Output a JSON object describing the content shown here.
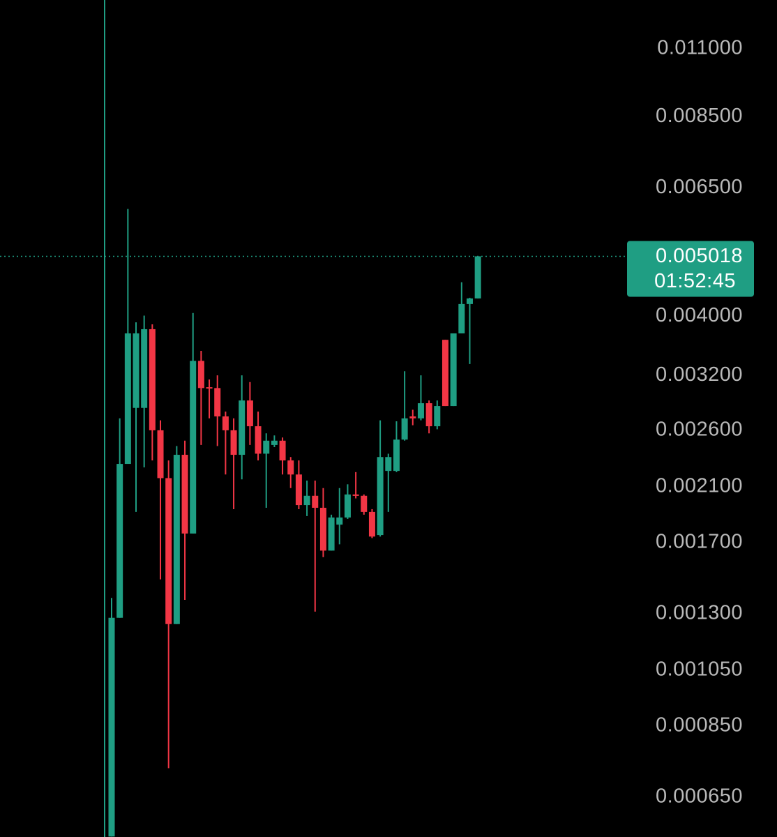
{
  "chart_data": {
    "type": "candlestick",
    "log_scale": true,
    "up_color": "#1f9e83",
    "down_color": "#f23645",
    "ylim": [
      0.000559,
      0.01322
    ],
    "yticks": [
      {
        "value": 0.011,
        "label": "0.011000"
      },
      {
        "value": 0.0085,
        "label": "0.008500"
      },
      {
        "value": 0.0065,
        "label": "0.006500"
      },
      {
        "value": 0.004,
        "label": "0.004000"
      },
      {
        "value": 0.0032,
        "label": "0.003200"
      },
      {
        "value": 0.0026,
        "label": "0.002600"
      },
      {
        "value": 0.0021,
        "label": "0.002100"
      },
      {
        "value": 0.0017,
        "label": "0.001700"
      },
      {
        "value": 0.0013,
        "label": "0.001300"
      },
      {
        "value": 0.00105,
        "label": "0.001050"
      },
      {
        "value": 0.00085,
        "label": "0.000850"
      },
      {
        "value": 0.00065,
        "label": "0.000650"
      }
    ],
    "open": [
      0.00056,
      0.00128,
      0.00229,
      0.00283,
      0.00283,
      0.00381,
      0.0026,
      0.00217,
      0.00125,
      0.00237,
      0.00176,
      0.00338,
      0.00306,
      0.00305,
      0.00274,
      0.0026,
      0.00237,
      0.00291,
      0.00264,
      0.00238,
      0.00246,
      0.0025,
      0.00232,
      0.0022,
      0.00196,
      0.00203,
      0.00194,
      0.00165,
      0.00182,
      0.00187,
      0.00204,
      0.00203,
      0.00191,
      0.00175,
      0.00223,
      0.00223,
      0.00251,
      0.00274,
      0.00272,
      0.00288,
      0.00264,
      0.00366,
      0.00285,
      0.00375,
      0.00419,
      0.00428
    ],
    "high": [
      0.00138,
      0.00272,
      0.006,
      0.00391,
      0.00401,
      0.00388,
      0.0027,
      0.00232,
      0.00245,
      0.0025,
      0.00405,
      0.00351,
      0.00315,
      0.0032,
      0.00279,
      0.00272,
      0.0032,
      0.00312,
      0.00279,
      0.00257,
      0.00255,
      0.00253,
      0.00235,
      0.00232,
      0.00215,
      0.00215,
      0.00209,
      0.00189,
      0.00209,
      0.00212,
      0.00222,
      0.00204,
      0.00193,
      0.0027,
      0.00238,
      0.00269,
      0.00325,
      0.00281,
      0.0032,
      0.00291,
      0.00291,
      0.00366,
      0.00375,
      0.00455,
      0.00429,
      0.005018
    ],
    "low": [
      0.00056,
      0.00128,
      0.00229,
      0.00191,
      0.00226,
      0.00232,
      0.00148,
      0.000725,
      0.00125,
      0.00137,
      0.00176,
      0.00246,
      0.00272,
      0.00245,
      0.0022,
      0.00193,
      0.00216,
      0.00246,
      0.00232,
      0.00194,
      0.00244,
      0.0022,
      0.00209,
      0.00193,
      0.00188,
      0.00131,
      0.00161,
      0.00165,
      0.00169,
      0.00186,
      0.00201,
      0.00189,
      0.00173,
      0.00174,
      0.00191,
      0.00222,
      0.0025,
      0.00265,
      0.0027,
      0.00257,
      0.00261,
      0.00285,
      0.00285,
      0.00375,
      0.00334,
      0.00428
    ],
    "close": [
      0.00128,
      0.00229,
      0.00375,
      0.00375,
      0.00381,
      0.0026,
      0.00217,
      0.00125,
      0.00237,
      0.00176,
      0.00338,
      0.00305,
      0.00305,
      0.00274,
      0.0026,
      0.00237,
      0.00291,
      0.00264,
      0.00238,
      0.0025,
      0.0025,
      0.00232,
      0.0022,
      0.00196,
      0.00203,
      0.00194,
      0.00165,
      0.00187,
      0.00187,
      0.00204,
      0.00203,
      0.00191,
      0.00174,
      0.00235,
      0.00235,
      0.00251,
      0.00272,
      0.00272,
      0.00288,
      0.00264,
      0.00285,
      0.00285,
      0.00375,
      0.00419,
      0.00428,
      0.005018
    ],
    "countdown": "01:52:45"
  }
}
